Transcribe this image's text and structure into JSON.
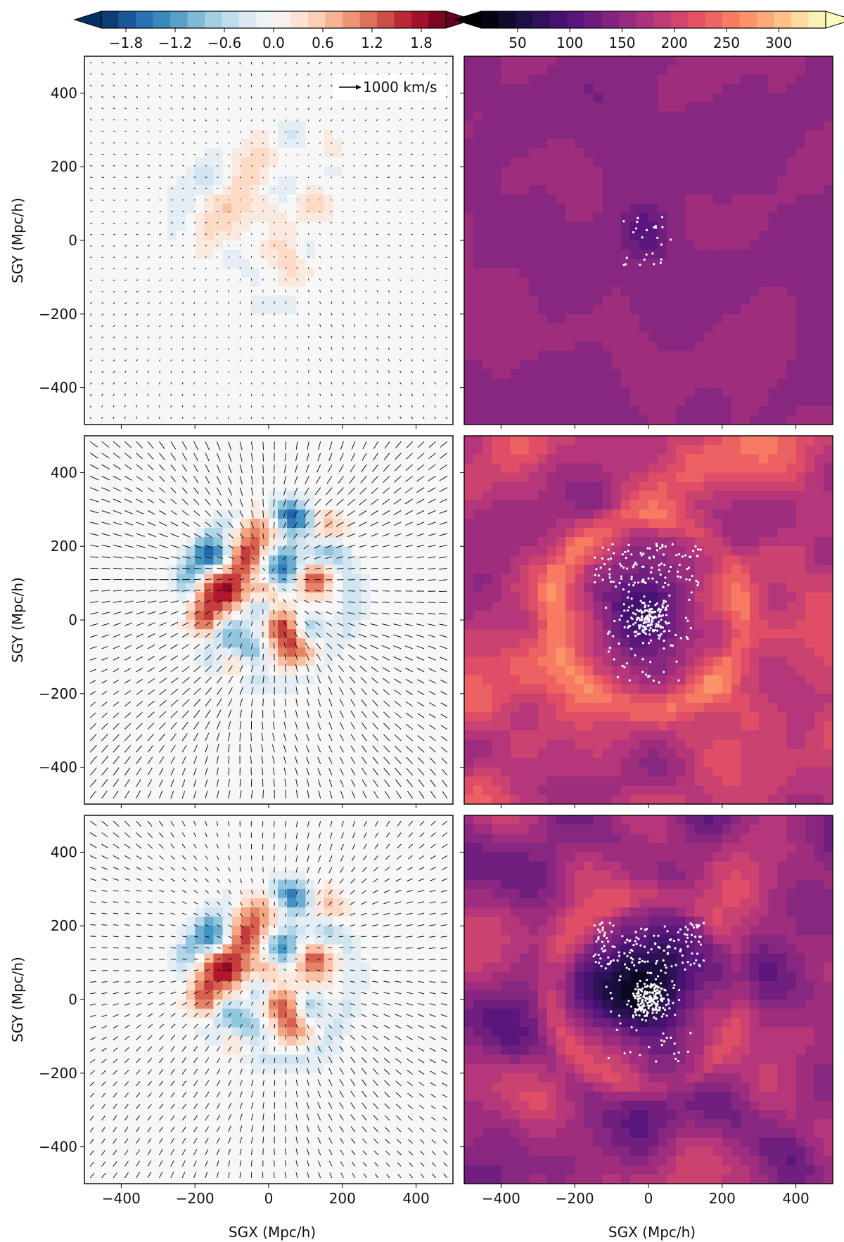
{
  "figure": {
    "chart_data": [
      {
        "type": "colorbar",
        "name": "div-colorbar",
        "palette": [
          "#053061",
          "#2166ac",
          "#4393c3",
          "#92c5de",
          "#d1e5f0",
          "#f7f7f7",
          "#fddbc7",
          "#f4a582",
          "#d6604d",
          "#b2182b",
          "#67001f"
        ],
        "range": [
          -2.1,
          2.1
        ],
        "ticks": [
          -1.8,
          -1.2,
          -0.6,
          0.0,
          0.6,
          1.2,
          1.8
        ],
        "tick_labels": [
          "−1.8",
          "−1.2",
          "−0.6",
          "0.0",
          "0.6",
          "1.2",
          "1.8"
        ],
        "extend": "both"
      },
      {
        "type": "colorbar",
        "name": "mag-colorbar",
        "palette": [
          "#000004",
          "#1c1044",
          "#4f127b",
          "#812581",
          "#b5367a",
          "#e55064",
          "#fb8761",
          "#fec287",
          "#fcfdbf"
        ],
        "range": [
          15,
          345
        ],
        "ticks": [
          50,
          100,
          150,
          200,
          250,
          300
        ],
        "tick_labels": [
          "50",
          "100",
          "150",
          "200",
          "250",
          "300"
        ],
        "extend": "both"
      },
      {
        "type": "heatmap",
        "name": "row1-left",
        "field": "density-contrast",
        "with_quiver": true,
        "vel_strength": 0.25,
        "structure": 0.25
      },
      {
        "type": "heatmap",
        "name": "row1-right",
        "field": "velocity-magnitude",
        "points": 25,
        "base": 150,
        "amp": 18,
        "void": 45
      },
      {
        "type": "heatmap",
        "name": "row2-left",
        "field": "density-contrast",
        "with_quiver": true,
        "vel_strength": 1.0,
        "structure": 1.0
      },
      {
        "type": "heatmap",
        "name": "row2-right",
        "field": "velocity-magnitude",
        "points": 320,
        "base": 195,
        "amp": 75,
        "void": 120
      },
      {
        "type": "heatmap",
        "name": "row3-left",
        "field": "density-contrast",
        "with_quiver": true,
        "vel_strength": 0.7,
        "structure": 0.9
      },
      {
        "type": "heatmap",
        "name": "row3-right",
        "field": "velocity-magnitude",
        "points": 380,
        "base": 160,
        "amp": 70,
        "void": 130
      }
    ],
    "axes": {
      "xlim": [
        -500,
        500
      ],
      "ylim": [
        -500,
        500
      ],
      "xticks": [
        -400,
        -200,
        0,
        200,
        400
      ],
      "yticks": [
        400,
        200,
        0,
        -200,
        -400
      ],
      "xtick_labels": [
        "−400",
        "−200",
        "0",
        "200",
        "400"
      ],
      "ytick_labels": [
        "400",
        "200",
        "0",
        "−200",
        "−400"
      ],
      "xlabel": "SGX (Mpc/h)",
      "ylabel": "SGY (Mpc/h)"
    },
    "quiver_key": {
      "label": "1000 km/s"
    }
  }
}
